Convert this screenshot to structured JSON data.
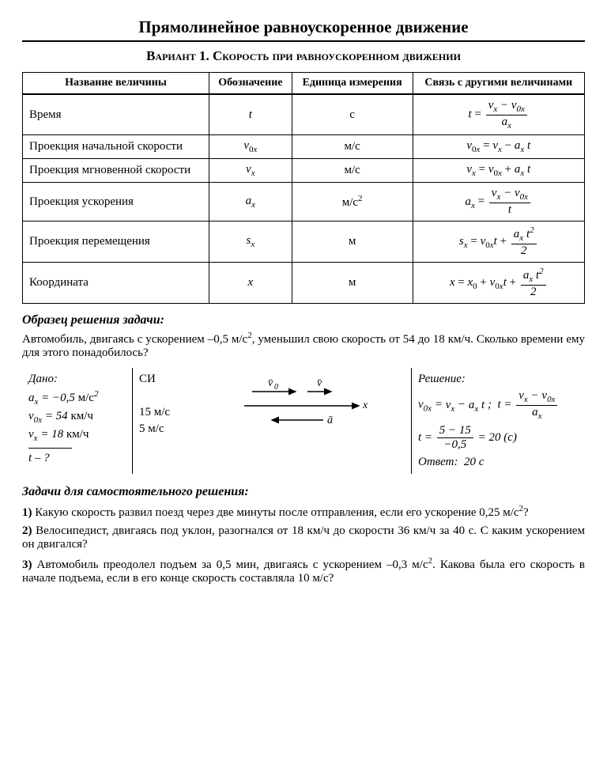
{
  "page_title": "Прямолинейное равноускоренное движение",
  "variant_title": "Вариант 1. Скорость при равноускоренном движении",
  "table": {
    "headers": [
      "Название величины",
      "Обозначение",
      "Единица измерения",
      "Связь с другими величинами"
    ],
    "rows": [
      {
        "name": "Время",
        "sym_html": "<span class='it'>t</span>",
        "unit": "с",
        "formula_html": "<span class='it'>t</span> = <span class='frac'><span class='n'><span class='it'>v<sub>x</sub></span> − <span class='it'>v</span><sub>0<span class='it'>x</span></sub></span><span class='d'><span class='it'>a<sub>x</sub></span></span></span>"
      },
      {
        "name": "Проекция начальной скорости",
        "sym_html": "<span class='it'>v</span><sub>0<span class='it'>x</span></sub>",
        "unit": "м/с",
        "formula_html": "<span class='it'>v</span><sub>0<span class='it'>x</span></sub> = <span class='it'>v<sub>x</sub></span> − <span class='it'>a<sub>x</sub> t</span>"
      },
      {
        "name": "Проекция мгновенной скорости",
        "sym_html": "<span class='it'>v<sub>x</sub></span>",
        "unit": "м/с",
        "formula_html": "<span class='it'>v<sub>x</sub></span> = <span class='it'>v</span><sub>0<span class='it'>x</span></sub> + <span class='it'>a<sub>x</sub> t</span>"
      },
      {
        "name": "Проекция ускорения",
        "sym_html": "<span class='it'>a<sub>x</sub></span>",
        "unit": "м/с<sup>2</sup>",
        "formula_html": "<span class='it'>a<sub>x</sub></span> = <span class='frac'><span class='n'><span class='it'>v<sub>x</sub></span> − <span class='it'>v</span><sub>0<span class='it'>x</span></sub></span><span class='d'><span class='it'>t</span></span></span>"
      },
      {
        "name": "Проекция перемещения",
        "sym_html": "<span class='it'>s<sub>x</sub></span>",
        "unit": "м",
        "formula_html": "<span class='it'>s<sub>x</sub></span> = <span class='it'>v</span><sub>0<span class='it'>x</span></sub><span class='it'>t</span> + <span class='frac'><span class='n'><span class='it'>a<sub>x</sub> t</span><sup>2</sup></span><span class='d'>2</span></span>"
      },
      {
        "name": "Координата",
        "sym_html": "<span class='it'>x</span>",
        "unit": "м",
        "formula_html": "<span class='it'>x</span> = <span class='it'>x</span><sub>0</sub> + <span class='it'>v</span><sub>0<span class='it'>x</span></sub><span class='it'>t</span> + <span class='frac'><span class='n'><span class='it'>a<sub>x</sub> t</span><sup>2</sup></span><span class='d'>2</span></span>"
      }
    ]
  },
  "example_title": "Образец решения задачи:",
  "example_text_html": "Автомобиль, двигаясь с ускорением –0,5 м/с<sup>2</sup>, уменьшил свою скорость от 54 до 18 км/ч. Сколько времени ему для этого понадобилось?",
  "given": {
    "title": "Дано:",
    "lines_html": [
      "<span class='it'>a<sub>x</sub></span> = −0,5 <span class='upright'>м/с</span><sup>2</sup>",
      "<span class='it'>v</span><sub>0<span class='it'>x</span></sub> = 54 <span class='upright'>км/ч</span>",
      "<span class='it'>v<sub>x</sub></span> = 18 <span class='upright'>км/ч</span>"
    ],
    "find_html": "<span class='it'>t</span> – ?"
  },
  "si": {
    "title": "СИ",
    "lines": [
      "",
      "15 м/с",
      "5 м/с"
    ]
  },
  "diagram": {
    "v0_label": "v̄₀",
    "v_label": "v̄",
    "x_label": "x",
    "a_label": "ā"
  },
  "solution": {
    "title": "Решение:",
    "lines_html": [
      "<span class='it'>v</span><sub>0<span class='it'>x</span></sub> = <span class='it'>v<sub>x</sub></span> − <span class='it'>a<sub>x</sub> t</span> ;&nbsp; <span class='it'>t</span> = <span class='frac'><span class='n'><span class='it'>v<sub>x</sub></span> − <span class='it'>v</span><sub>0<span class='it'>x</span></sub></span><span class='d'><span class='it'>a<sub>x</sub></span></span></span>",
      "<span class='it'>t</span> = <span class='frac'><span class='n'>5 − 15</span><span class='d'>−0,5</span></span> = 20 (с)",
      "<span class='it'>Ответ:</span>&nbsp; 20 с"
    ]
  },
  "tasks_title": "Задачи для самостоятельного решения:",
  "tasks_html": [
    "<b>1)</b> Какую скорость развил поезд через две минуты после отправления, если его ускорение 0,25 м/с<sup>2</sup>?",
    "<b>2)</b> Велосипедист, двигаясь под уклон, разогнался от 18 км/ч до скорости 36 км/ч за 40 с. С каким ускорением он двигался?",
    "<b>3)</b> Автомобиль преодолел подъем за 0,5 мин, двигаясь с ускорением –0,3 м/с<sup>2</sup>. Какова была его скорость в начале подъема, если в его конце скорость составляла 10 м/с?"
  ],
  "style": {
    "text_color": "#000000",
    "background": "#ffffff",
    "border_color": "#000000",
    "title_fontsize": 21,
    "body_fontsize": 15
  }
}
